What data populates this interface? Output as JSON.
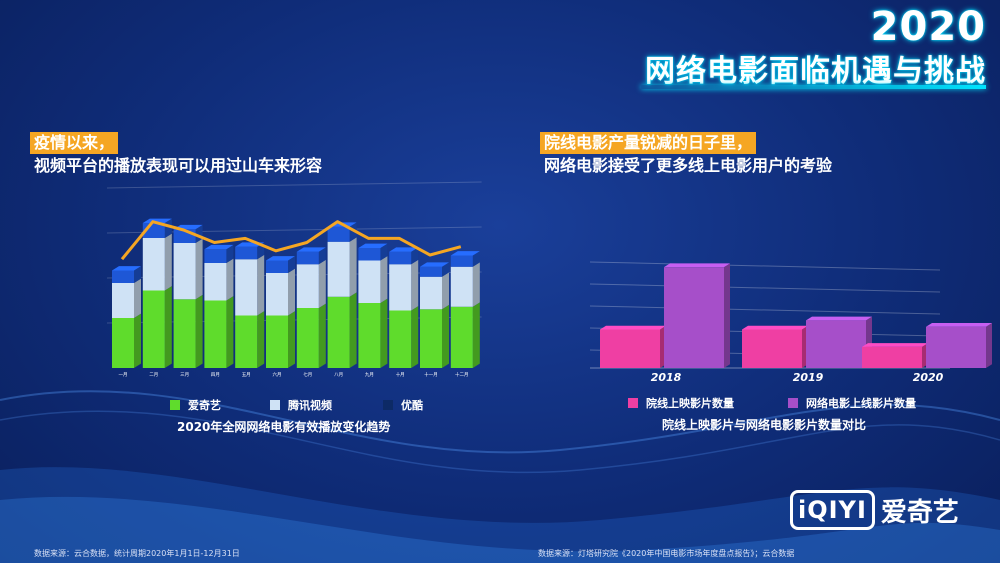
{
  "header": {
    "year": "2020",
    "title": "网络电影面临机遇与挑战"
  },
  "left": {
    "highlight": "疫情以来，",
    "subtitle": "视频平台的播放表现可以用过山车来形容",
    "caption": "2020年全网网络电影有效播放变化趋势",
    "source": "数据来源：云合数据，统计周期2020年1月1日-12月31日"
  },
  "right": {
    "highlight": "院线电影产量锐减的日子里，",
    "subtitle": "网络电影接受了更多线上电影用户的考验",
    "caption": "院线上映影片与网络电影影片数量对比",
    "source": "数据来源：灯塔研究院《2020年中国电影市场年度盘点报告》；云合数据"
  },
  "chart_data": [
    {
      "type": "bar",
      "stacked": true,
      "categories": [
        "一月",
        "二月",
        "三月",
        "四月",
        "五月",
        "六月",
        "七月",
        "八月",
        "九月",
        "十月",
        "十一月",
        "十二月"
      ],
      "series": [
        {
          "name": "爱奇艺",
          "color": "#5fdc2c",
          "values": [
            40,
            62,
            55,
            54,
            42,
            42,
            48,
            57,
            52,
            46,
            47,
            49
          ]
        },
        {
          "name": "腾讯视频",
          "color": "#cfe2f5",
          "values": [
            28,
            42,
            45,
            30,
            45,
            34,
            35,
            44,
            34,
            37,
            26,
            32
          ]
        },
        {
          "name": "优酷",
          "color": "#1e57d6",
          "values": [
            10,
            12,
            11,
            11,
            10,
            10,
            10,
            12,
            10,
            10,
            8,
            9
          ]
        }
      ],
      "line": {
        "name": "",
        "color": "#f5a623",
        "values": [
          115,
          160,
          150,
          135,
          140,
          125,
          135,
          160,
          140,
          140,
          120,
          130
        ]
      },
      "ylim": [
        0,
        180
      ]
    },
    {
      "type": "bar",
      "categories": [
        "2018",
        "2019",
        "2020"
      ],
      "series": [
        {
          "name": "院线上映影片数量",
          "color": "#ef3fa3",
          "values": [
            42,
            42,
            23
          ]
        },
        {
          "name": "网络电影上线影片数量",
          "color": "#a64fc9",
          "values": [
            110,
            52,
            45
          ]
        }
      ],
      "ylim": [
        0,
        120
      ],
      "grid": true
    }
  ],
  "logo": {
    "brand": "iQIYI",
    "text": "爱奇艺"
  }
}
